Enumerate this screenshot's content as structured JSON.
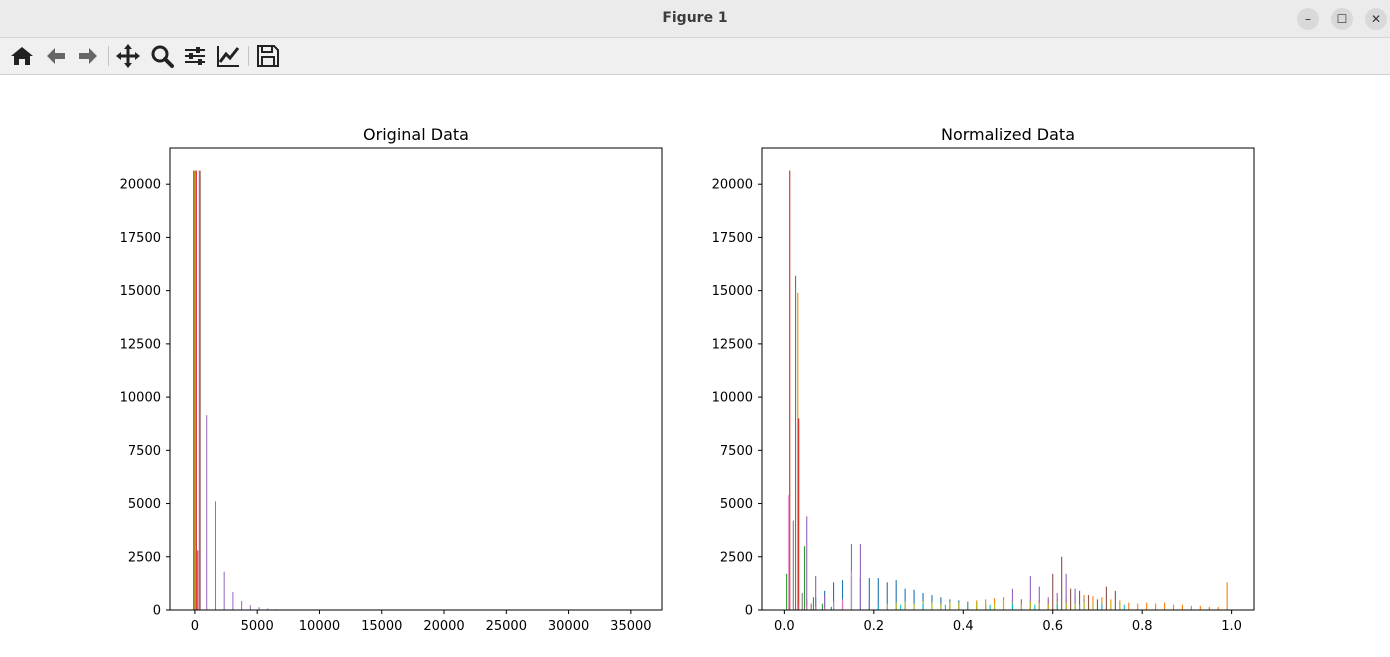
{
  "window": {
    "title": "Figure 1",
    "controls": {
      "minimize": "–",
      "maximize": "☐",
      "close": "✕"
    }
  },
  "toolbar": {
    "buttons": [
      {
        "name": "home-icon"
      },
      {
        "name": "back-icon"
      },
      {
        "name": "forward-icon"
      },
      {
        "name": "pan-icon"
      },
      {
        "name": "zoom-icon"
      },
      {
        "name": "configure-subplots-icon"
      },
      {
        "name": "edit-axis-icon"
      },
      {
        "name": "save-icon"
      }
    ]
  },
  "chart_data": [
    {
      "type": "bar",
      "title": "Original Data",
      "xlabel": "",
      "ylabel": "",
      "xlim": [
        -2000,
        37500
      ],
      "ylim": [
        0,
        21700
      ],
      "xticks": [
        0,
        5000,
        10000,
        15000,
        20000,
        25000,
        30000,
        35000
      ],
      "xtick_labels": [
        "0",
        "5000",
        "10000",
        "15000",
        "20000",
        "25000",
        "30000",
        "35000"
      ],
      "yticks": [
        0,
        2500,
        5000,
        7500,
        10000,
        12500,
        15000,
        17500,
        20000
      ],
      "ytick_labels": [
        "0",
        "2500",
        "5000",
        "7500",
        "10000",
        "12500",
        "15000",
        "17500",
        "20000"
      ],
      "grid": false,
      "bar_width": 70,
      "series": [
        {
          "color": "#1f77b4",
          "x": [
            -100
          ],
          "values": [
            20640
          ]
        },
        {
          "color": "#ff7f0e",
          "x": [
            -30
          ],
          "values": [
            20640
          ]
        },
        {
          "color": "#2ca02c",
          "x": [
            20
          ],
          "values": [
            20640
          ]
        },
        {
          "color": "#d62728",
          "x": [
            120,
            230
          ],
          "values": [
            20640,
            2800
          ]
        },
        {
          "color": "#9467bd",
          "x": [
            350,
            950,
            1650,
            2350,
            3050,
            3750,
            4450,
            5150,
            5850,
            6550,
            7250
          ],
          "values": [
            20640,
            9150,
            5100,
            1800,
            850,
            420,
            230,
            130,
            70,
            40,
            20
          ]
        },
        {
          "color": "#8c564b",
          "x": [
            420
          ],
          "values": [
            20640
          ]
        }
      ]
    },
    {
      "type": "bar",
      "title": "Normalized Data",
      "xlabel": "",
      "ylabel": "",
      "xlim": [
        -0.05,
        1.05
      ],
      "ylim": [
        0,
        21700
      ],
      "xticks": [
        0.0,
        0.2,
        0.4,
        0.6,
        0.8,
        1.0
      ],
      "xtick_labels": [
        "0.0",
        "0.2",
        "0.4",
        "0.6",
        "0.8",
        "1.0"
      ],
      "yticks": [
        0,
        2500,
        5000,
        7500,
        10000,
        12500,
        15000,
        17500,
        20000
      ],
      "ytick_labels": [
        "0",
        "2500",
        "5000",
        "7500",
        "10000",
        "12500",
        "15000",
        "17500",
        "20000"
      ],
      "grid": false,
      "bar_width": 0.0025,
      "series": [
        {
          "color": "#1f77b4",
          "x": [
            0.07,
            0.09,
            0.11,
            0.13,
            0.15,
            0.17,
            0.19,
            0.21,
            0.23,
            0.25,
            0.27,
            0.29,
            0.31,
            0.33,
            0.35,
            0.37,
            0.39,
            0.41,
            0.43,
            0.45
          ],
          "values": [
            600,
            900,
            1300,
            1400,
            1600,
            1500,
            1500,
            1500,
            1300,
            1400,
            1000,
            950,
            800,
            700,
            600,
            500,
            450,
            400,
            350,
            300
          ]
        },
        {
          "color": "#ff7f0e",
          "x": [
            0.03,
            0.05,
            0.07,
            0.09,
            0.41,
            0.43,
            0.45,
            0.47,
            0.49,
            0.51,
            0.53,
            0.55,
            0.57,
            0.59,
            0.61,
            0.63,
            0.65,
            0.67,
            0.69,
            0.71,
            0.73,
            0.75,
            0.77,
            0.79,
            0.81,
            0.83,
            0.85,
            0.87,
            0.89,
            0.91,
            0.93,
            0.95,
            0.97,
            0.99
          ],
          "values": [
            14900,
            500,
            300,
            200,
            400,
            450,
            500,
            550,
            600,
            550,
            500,
            450,
            500,
            450,
            500,
            550,
            600,
            700,
            650,
            600,
            500,
            450,
            350,
            300,
            350,
            300,
            350,
            250,
            250,
            200,
            200,
            150,
            150,
            1300
          ]
        },
        {
          "color": "#2ca02c",
          "x": [
            0.005,
            0.025,
            0.045,
            0.065,
            0.085,
            0.105
          ],
          "values": [
            1700,
            15700,
            3000,
            600,
            300,
            150
          ]
        },
        {
          "color": "#d62728",
          "x": [
            0.012,
            0.032
          ],
          "values": [
            20640,
            9000
          ]
        },
        {
          "color": "#9467bd",
          "x": [
            0.05,
            0.07,
            0.09,
            0.11,
            0.13,
            0.15,
            0.17,
            0.19,
            0.51,
            0.53,
            0.55,
            0.57,
            0.59,
            0.61,
            0.63,
            0.65,
            0.67
          ],
          "values": [
            4400,
            1600,
            700,
            400,
            300,
            3100,
            3100,
            500,
            1000,
            500,
            1600,
            1100,
            600,
            800,
            1700,
            1000,
            500
          ]
        },
        {
          "color": "#8c564b",
          "x": [
            0.6,
            0.62,
            0.64,
            0.66,
            0.68,
            0.7,
            0.72,
            0.74
          ],
          "values": [
            1700,
            2500,
            1000,
            900,
            700,
            500,
            1100,
            900
          ]
        },
        {
          "color": "#e377c2",
          "x": [
            0.01,
            0.03,
            0.05,
            0.07,
            0.09,
            0.11,
            0.13,
            0.15
          ],
          "values": [
            5400,
            300,
            200,
            150,
            100,
            400,
            500,
            1800
          ]
        },
        {
          "color": "#7f7f7f",
          "x": [
            0.02,
            0.04,
            0.06
          ],
          "values": [
            4200,
            800,
            300
          ]
        },
        {
          "color": "#bcbd22",
          "x": [
            0.23,
            0.25,
            0.27,
            0.29,
            0.31,
            0.33,
            0.35,
            0.37,
            0.39,
            0.41,
            0.43,
            0.45,
            0.47,
            0.49,
            0.51,
            0.53,
            0.55,
            0.57,
            0.59,
            0.61,
            0.63,
            0.65,
            0.67,
            0.69,
            0.71,
            0.73,
            0.75
          ],
          "values": [
            300,
            350,
            400,
            300,
            400,
            350,
            300,
            400,
            350,
            300,
            400,
            350,
            300,
            400,
            350,
            300,
            400,
            350,
            300,
            400,
            350,
            300,
            400,
            350,
            300,
            400,
            350
          ]
        },
        {
          "color": "#17becf",
          "x": [
            0.21,
            0.26,
            0.31,
            0.36,
            0.41,
            0.46,
            0.51,
            0.56,
            0.61,
            0.66,
            0.71,
            0.76
          ],
          "values": [
            200,
            250,
            300,
            250,
            300,
            250,
            300,
            250,
            300,
            250,
            300,
            250
          ]
        }
      ]
    }
  ]
}
